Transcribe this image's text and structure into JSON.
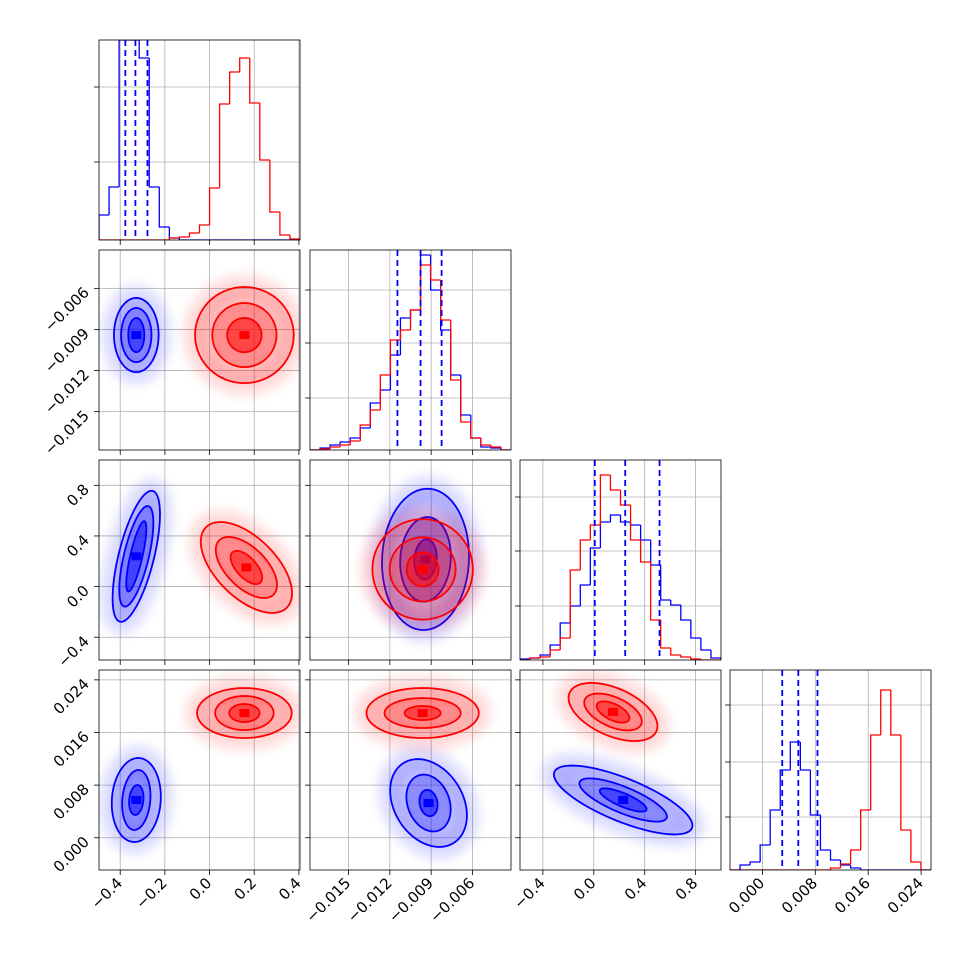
{
  "chart_data": {
    "type": "corner",
    "grid": true,
    "params": [
      {
        "lim": [
          -0.495,
          0.405
        ],
        "ticks": [
          {
            "value": -0.4,
            "label": "−0.4"
          },
          {
            "value": -0.2,
            "label": "−0.2"
          },
          {
            "value": 0,
            "label": "0.0"
          },
          0.2,
          0.4
        ]
      },
      {
        "lim": [
          -0.0178,
          -0.0032
        ],
        "ticks": [
          {
            "value": -0.015,
            "label": "−0.015"
          },
          {
            "value": -0.012,
            "label": "−0.012"
          },
          {
            "value": -0.009,
            "label": "−0.009"
          },
          {
            "value": -0.006,
            "label": "−0.006"
          }
        ]
      },
      {
        "lim": [
          -0.58,
          1.0
        ],
        "ticks": [
          {
            "value": -0.4,
            "label": "−0.4"
          },
          {
            "value": 0,
            "label": "0.0"
          },
          0.4,
          0.8
        ]
      },
      {
        "lim": [
          -0.0049,
          0.0255
        ],
        "ticks": [
          {
            "value": 0,
            "label": "0.000"
          },
          0.008,
          0.016,
          0.024
        ]
      }
    ],
    "diagonal": [
      {
        "bins": [
          -0.495,
          -0.45,
          -0.405,
          -0.36,
          -0.315,
          -0.27,
          -0.225,
          -0.18,
          -0.135,
          -0.09,
          -0.045,
          0,
          0.045,
          0.09,
          0.135,
          0.18,
          0.225,
          0.27,
          0.315,
          0.36,
          0.405
        ],
        "ylim": [
          0,
          200
        ],
        "yticks": [
          78,
          153
        ],
        "series": [
          {
            "color": "#0000ff",
            "values": [
              25,
              53,
              200,
              200,
              182,
              53,
              13,
              2,
              0,
              0,
              0,
              0,
              0,
              0,
              0,
              0,
              0,
              0,
              0,
              0
            ]
          },
          {
            "color": "#ff0000",
            "values": [
              0,
              0,
              0,
              0,
              0,
              0,
              0,
              2,
              3,
              7,
              15,
              52,
              136,
              168,
              182,
              137,
              80,
              28,
              5,
              1
            ]
          }
        ],
        "quantiles": [
          -0.377,
          -0.332,
          -0.278
        ],
        "quantile_color": "#0000ff"
      },
      {
        "bins": [
          -0.0178,
          -0.01707,
          -0.01634,
          -0.01561,
          -0.01488,
          -0.01415,
          -0.01342,
          -0.01269,
          -0.01196,
          -0.01123,
          -0.0105,
          -0.00977,
          -0.00904,
          -0.00831,
          -0.00758,
          -0.00685,
          -0.00612,
          -0.00539,
          -0.00466,
          -0.00393,
          -0.0032
        ],
        "ylim": [
          0,
          200
        ],
        "yticks": [
          52,
          107,
          160
        ],
        "series": [
          {
            "color": "#0000ff",
            "values": [
              0,
              2,
              5,
              8,
              12,
              22,
              47,
              60,
              95,
              132,
              140,
              195,
              160,
              120,
              75,
              35,
              12,
              3,
              2,
              0
            ]
          },
          {
            "color": "#ff0000",
            "values": [
              0,
              1,
              3,
              5,
              9,
              25,
              40,
              75,
              110,
              120,
              140,
              185,
              170,
              130,
              70,
              28,
              12,
              5,
              3,
              0
            ]
          }
        ],
        "quantiles": [
          -0.01145,
          -0.00977,
          -0.00824
        ],
        "quantile_color": "#0000ff"
      },
      {
        "bins": [
          -0.58,
          -0.501,
          -0.422,
          -0.343,
          -0.264,
          -0.185,
          -0.106,
          -0.027,
          0.052,
          0.131,
          0.21,
          0.289,
          0.368,
          0.447,
          0.526,
          0.605,
          0.684,
          0.763,
          0.842,
          0.921,
          1.0
        ],
        "ylim": [
          0,
          200
        ],
        "yticks": [
          54,
          109,
          163
        ],
        "series": [
          {
            "color": "#0000ff",
            "values": [
              1,
              2,
              5,
              15,
              37,
              54,
              75,
              112,
              138,
              145,
              138,
              135,
              120,
              95,
              60,
              55,
              40,
              22,
              10,
              2
            ]
          },
          {
            "color": "#ff0000",
            "values": [
              0,
              2,
              3,
              10,
              22,
              90,
              120,
              135,
              185,
              170,
              155,
              120,
              98,
              40,
              12,
              5,
              3,
              1,
              0,
              0
            ]
          }
        ],
        "quantiles": [
          0.008,
          0.247,
          0.517
        ],
        "quantile_color": "#0000ff"
      },
      {
        "bins": [
          -0.0049,
          -0.00338,
          -0.00186,
          -0.00034,
          0.00118,
          0.0027,
          0.00422,
          0.00574,
          0.00726,
          0.00878,
          0.0103,
          0.01182,
          0.01334,
          0.01486,
          0.01638,
          0.0179,
          0.01942,
          0.02094,
          0.02246,
          0.02398,
          0.0255
        ],
        "ylim": [
          0,
          200
        ],
        "yticks": [
          53,
          108,
          165
        ],
        "series": [
          {
            "color": "#0000ff",
            "values": [
              0,
              5,
              8,
              25,
              60,
              100,
              128,
              100,
              55,
              20,
              10,
              5,
              2,
              0,
              0,
              0,
              0,
              0,
              0,
              0
            ]
          },
          {
            "color": "#ff0000",
            "values": [
              0,
              0,
              0,
              0,
              0,
              0,
              0,
              0,
              0,
              0,
              2,
              6,
              20,
              60,
              135,
              180,
              135,
              40,
              8,
              0
            ]
          }
        ],
        "quantiles": [
          0.003,
          0.00543,
          0.00833
        ],
        "quantile_color": "#0000ff"
      }
    ],
    "pairs": [
      [
        {
          "series": [
            {
              "color": "#0000ff",
              "center": [
                -0.328,
                -0.00941
              ],
              "contours": [
                {
                  "a": [
                    -0.328,
                    -0.0067
                  ],
                  "b": [
                    -0.228,
                    -0.00941
                  ]
                },
                {
                  "a": [
                    -0.328,
                    -0.00743
                  ],
                  "b": [
                    -0.26,
                    -0.00941
                  ]
                },
                {
                  "a": [
                    -0.328,
                    -0.00816
                  ],
                  "b": [
                    -0.292,
                    -0.00941
                  ]
                }
              ]
            },
            {
              "color": "#ff0000",
              "center": [
                0.156,
                -0.00941
              ],
              "contours": [
                {
                  "a": [
                    0.156,
                    -0.0059
                  ],
                  "b": [
                    0.377,
                    -0.00941
                  ]
                },
                {
                  "a": [
                    0.156,
                    -0.00707
                  ],
                  "b": [
                    0.3,
                    -0.00941
                  ]
                },
                {
                  "a": [
                    0.156,
                    -0.00816
                  ],
                  "b": [
                    0.233,
                    -0.00941
                  ]
                }
              ]
            }
          ]
        }
      ],
      [
        {
          "series": [
            {
              "color": "#0000ff",
              "center": [
                -0.328,
                0.239
              ],
              "contours": [
                {
                  "a": [
                    -0.255,
                    0.756
                  ],
                  "b": [
                    -0.251,
                    0.207
                  ]
                },
                {
                  "a": [
                    -0.274,
                    0.636
                  ],
                  "b": [
                    -0.274,
                    0.215
                  ]
                },
                {
                  "a": [
                    -0.292,
                    0.517
                  ],
                  "b": [
                    -0.301,
                    0.231
                  ]
                }
              ]
            },
            {
              "color": "#ff0000",
              "center": [
                0.165,
                0.151
              ],
              "contours": [
                {
                  "a": [
                    0.346,
                    -0.167
                  ],
                  "b": [
                    0.26,
                    0.318
                  ]
                },
                {
                  "a": [
                    0.287,
                    -0.063
                  ],
                  "b": [
                    0.228,
                    0.263
                  ]
                },
                {
                  "a": [
                    0.228,
                    0.032
                  ],
                  "b": [
                    0.197,
                    0.207
                  ]
                }
              ]
            }
          ]
        },
        {
          "series": [
            {
              "color": "#0000ff",
              "center": [
                -0.00941,
                0.215
              ],
              "contours": [
                {
                  "a": [
                    -0.00904,
                    0.772
                  ],
                  "b": [
                    -0.00627,
                    0.175
                  ]
                },
                {
                  "a": [
                    -0.00919,
                    0.549
                  ],
                  "b": [
                    -0.00758,
                    0.199
                  ]
                },
                {
                  "a": [
                    -0.00933,
                    0.374
                  ],
                  "b": [
                    -0.0086,
                    0.215
                  ]
                }
              ]
            },
            {
              "color": "#ff0000",
              "center": [
                -0.00962,
                0.136
              ],
              "contours": [
                {
                  "a": [
                    -0.00962,
                    0.533
                  ],
                  "b": [
                    -0.00597,
                    0.136
                  ]
                },
                {
                  "a": [
                    -0.00962,
                    0.39
                  ],
                  "b": [
                    -0.00722,
                    0.136
                  ]
                },
                {
                  "a": [
                    -0.00962,
                    0.271
                  ],
                  "b": [
                    -0.00846,
                    0.136
                  ]
                }
              ]
            }
          ]
        }
      ],
      [
        {
          "series": [
            {
              "color": "#0000ff",
              "center": [
                -0.328,
                0.00574
              ],
              "contours": [
                {
                  "a": [
                    -0.314,
                    0.01212
                  ],
                  "b": [
                    -0.219,
                    0.00544
                  ]
                },
                {
                  "a": [
                    -0.319,
                    0.0103
                  ],
                  "b": [
                    -0.265,
                    0.00574
                  ]
                },
                {
                  "a": [
                    -0.323,
                    0.00802
                  ],
                  "b": [
                    -0.296,
                    0.00574
                  ]
                }
              ]
            },
            {
              "color": "#ff0000",
              "center": [
                0.156,
                0.01896
              ],
              "contours": [
                {
                  "a": [
                    0.156,
                    0.02276
                  ],
                  "b": [
                    0.368,
                    0.01896
                  ]
                },
                {
                  "a": [
                    0.156,
                    0.02155
                  ],
                  "b": [
                    0.287,
                    0.01896
                  ]
                },
                {
                  "a": [
                    0.156,
                    0.02033
                  ],
                  "b": [
                    0.224,
                    0.01896
                  ]
                }
              ]
            }
          ]
        },
        {
          "series": [
            {
              "color": "#0000ff",
              "center": [
                -0.00919,
                0.00528
              ],
              "contours": [
                {
                  "a": [
                    -0.00641,
                    0.00392
                  ],
                  "b": [
                    -0.00941,
                    0.01182
                  ]
                },
                {
                  "a": [
                    -0.00758,
                    0.00452
                  ],
                  "b": [
                    -0.00926,
                    0.00954
                  ]
                },
                {
                  "a": [
                    -0.00853,
                    0.00498
                  ],
                  "b": [
                    -0.00919,
                    0.00726
                  ]
                }
              ]
            },
            {
              "color": "#ff0000",
              "center": [
                -0.00962,
                0.01896
              ],
              "contours": [
                {
                  "a": [
                    -0.00962,
                    0.02276
                  ],
                  "b": [
                    -0.00554,
                    0.01896
                  ]
                },
                {
                  "a": [
                    -0.00962,
                    0.02124
                  ],
                  "b": [
                    -0.00685,
                    0.01896
                  ]
                },
                {
                  "a": [
                    -0.00962,
                    0.02003
                  ],
                  "b": [
                    -0.00831,
                    0.01896
                  ]
                }
              ]
            }
          ]
        },
        {
          "series": [
            {
              "color": "#0000ff",
              "center": [
                0.231,
                0.00574
              ],
              "contours": [
                {
                  "a": [
                    0.772,
                    0.00148
                  ],
                  "b": [
                    0.295,
                    0.00878
                  ]
                },
                {
                  "a": [
                    0.573,
                    0.003
                  ],
                  "b": [
                    0.271,
                    0.00756
                  ]
                },
                {
                  "a": [
                    0.414,
                    0.00422
                  ],
                  "b": [
                    0.255,
                    0.00665
                  ]
                }
              ]
            },
            {
              "color": "#ff0000",
              "center": [
                0.151,
                0.01912
              ],
              "contours": [
                {
                  "a": [
                    0.493,
                    0.01623
                  ],
                  "b": [
                    0.223,
                    0.02246
                  ]
                },
                {
                  "a": [
                    0.374,
                    0.01729
                  ],
                  "b": [
                    0.191,
                    0.02124
                  ]
                },
                {
                  "a": [
                    0.279,
                    0.01805
                  ],
                  "b": [
                    0.167,
                    0.02033
                  ]
                }
              ]
            }
          ]
        }
      ]
    ]
  }
}
